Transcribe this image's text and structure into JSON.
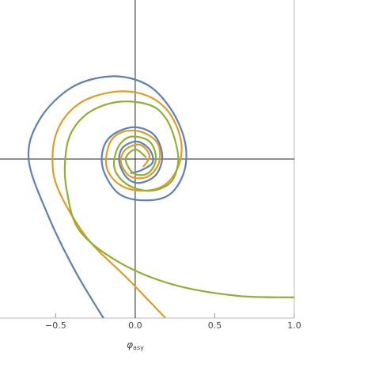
{
  "chart_data": {
    "type": "line",
    "xlabel": {
      "main": "φ",
      "sub": "asy"
    },
    "xlim": [
      -0.85,
      1.0
    ],
    "ylim": [
      -1.0,
      1.0
    ],
    "xticks": [
      {
        "value": -0.5,
        "label": "−0.5"
      },
      {
        "value": 0,
        "label": "0.0"
      },
      0.5,
      {
        "value": 1.0,
        "label": "1.0"
      }
    ],
    "axes_at_origin": true,
    "series": [
      {
        "color": "#5e81b5",
        "x": [
          -0.2,
          -0.38,
          -0.55,
          -0.67,
          -0.6,
          -0.4,
          -0.15,
          0.07,
          0.22,
          0.31,
          0.31,
          0.22,
          0.07,
          -0.1,
          -0.2,
          -0.2,
          -0.13,
          0,
          0.12,
          0.17,
          0.13,
          0.03,
          -0.05,
          -0.1,
          -0.08,
          0.01,
          0.09,
          0.11,
          0.04,
          -0.03
        ],
        "values": [
          -1.0,
          -0.7,
          -0.35,
          0,
          0.25,
          0.45,
          0.52,
          0.47,
          0.32,
          0.12,
          -0.07,
          -0.22,
          -0.26,
          -0.22,
          -0.07,
          0.07,
          0.16,
          0.2,
          0.15,
          0.02,
          -0.1,
          -0.15,
          -0.12,
          -0.02,
          0.07,
          0.11,
          0.06,
          -0.02,
          -0.07,
          -0.09
        ]
      },
      {
        "color": "#e19c24",
        "x": [
          0.19,
          -0.05,
          -0.3,
          -0.48,
          -0.52,
          -0.48,
          -0.35,
          -0.15,
          0.04,
          0.19,
          0.28,
          0.28,
          0.19,
          0.04,
          -0.1,
          -0.18,
          -0.16,
          -0.08,
          0.04,
          0.14,
          0.15,
          0.08,
          -0.03,
          -0.09,
          -0.06,
          0.03,
          0.09,
          0.05
        ],
        "values": [
          -1.0,
          -0.75,
          -0.5,
          -0.2,
          0,
          0.2,
          0.35,
          0.42,
          0.41,
          0.32,
          0.15,
          -0.02,
          -0.16,
          -0.2,
          -0.16,
          -0.05,
          0.1,
          0.17,
          0.17,
          0.1,
          -0.02,
          -0.11,
          -0.11,
          -0.02,
          0.06,
          0.09,
          0.02,
          -0.05
        ]
      },
      {
        "color": "#8fb032",
        "x": [
          1.0,
          0.64,
          0.24,
          -0.1,
          -0.35,
          -0.43,
          -0.44,
          -0.4,
          -0.28,
          -0.1,
          0.09,
          0.19,
          0.25,
          0.27,
          0.22,
          0.09,
          -0.05,
          -0.13,
          -0.11,
          -0.03,
          0.09,
          0.13,
          0.08,
          -0.01,
          -0.06,
          0.0,
          0.07
        ],
        "values": [
          -0.87,
          -0.86,
          -0.79,
          -0.65,
          -0.45,
          -0.2,
          0,
          0.17,
          0.3,
          0.36,
          0.34,
          0.26,
          0.12,
          -0.02,
          -0.15,
          -0.2,
          -0.16,
          -0.06,
          0.07,
          0.14,
          0.11,
          0,
          -0.09,
          -0.09,
          0,
          0.06,
          0.01
        ]
      }
    ]
  }
}
